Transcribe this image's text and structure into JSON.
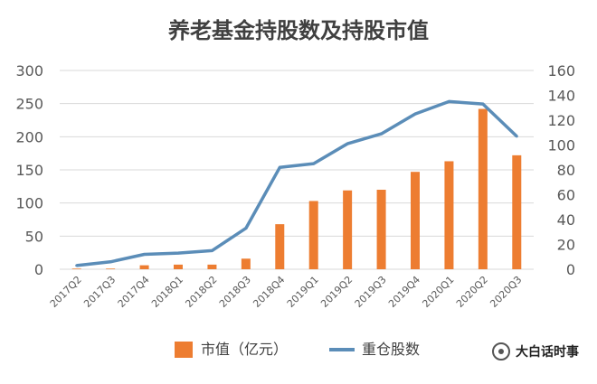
{
  "chart_data": {
    "type": "bar+line",
    "title": "养老基金持股数及持股市值",
    "categories": [
      "2017Q2",
      "2017Q3",
      "2017Q4",
      "2018Q1",
      "2018Q2",
      "2018Q3",
      "2018Q4",
      "2019Q1",
      "2019Q2",
      "2019Q3",
      "2019Q4",
      "2020Q1",
      "2020Q2",
      "2020Q3"
    ],
    "series": [
      {
        "name": "市值（亿元）",
        "type": "bar",
        "axis": "left",
        "values": [
          1,
          1,
          6,
          7,
          7,
          16,
          68,
          103,
          119,
          120,
          147,
          163,
          242,
          172
        ],
        "color": "#ED7D31"
      },
      {
        "name": "重仓股数",
        "type": "line",
        "axis": "right",
        "values": [
          3,
          6,
          12,
          13,
          15,
          33,
          82,
          85,
          101,
          109,
          125,
          135,
          133,
          107
        ],
        "color": "#5B8DB8"
      }
    ],
    "left_axis": {
      "ylim": [
        0,
        300
      ],
      "ticks": [
        0,
        50,
        100,
        150,
        200,
        250,
        300
      ]
    },
    "right_axis": {
      "ylim": [
        0,
        160
      ],
      "ticks": [
        0,
        20,
        40,
        60,
        80,
        100,
        120,
        140,
        160
      ]
    },
    "grid": true,
    "legend_position": "bottom"
  },
  "watermark": {
    "text": "大白话时事"
  },
  "background_color": "#ffffff",
  "grid_color": "#d9d9d9",
  "axis_text_color": "#595959",
  "title_color": "#404040"
}
